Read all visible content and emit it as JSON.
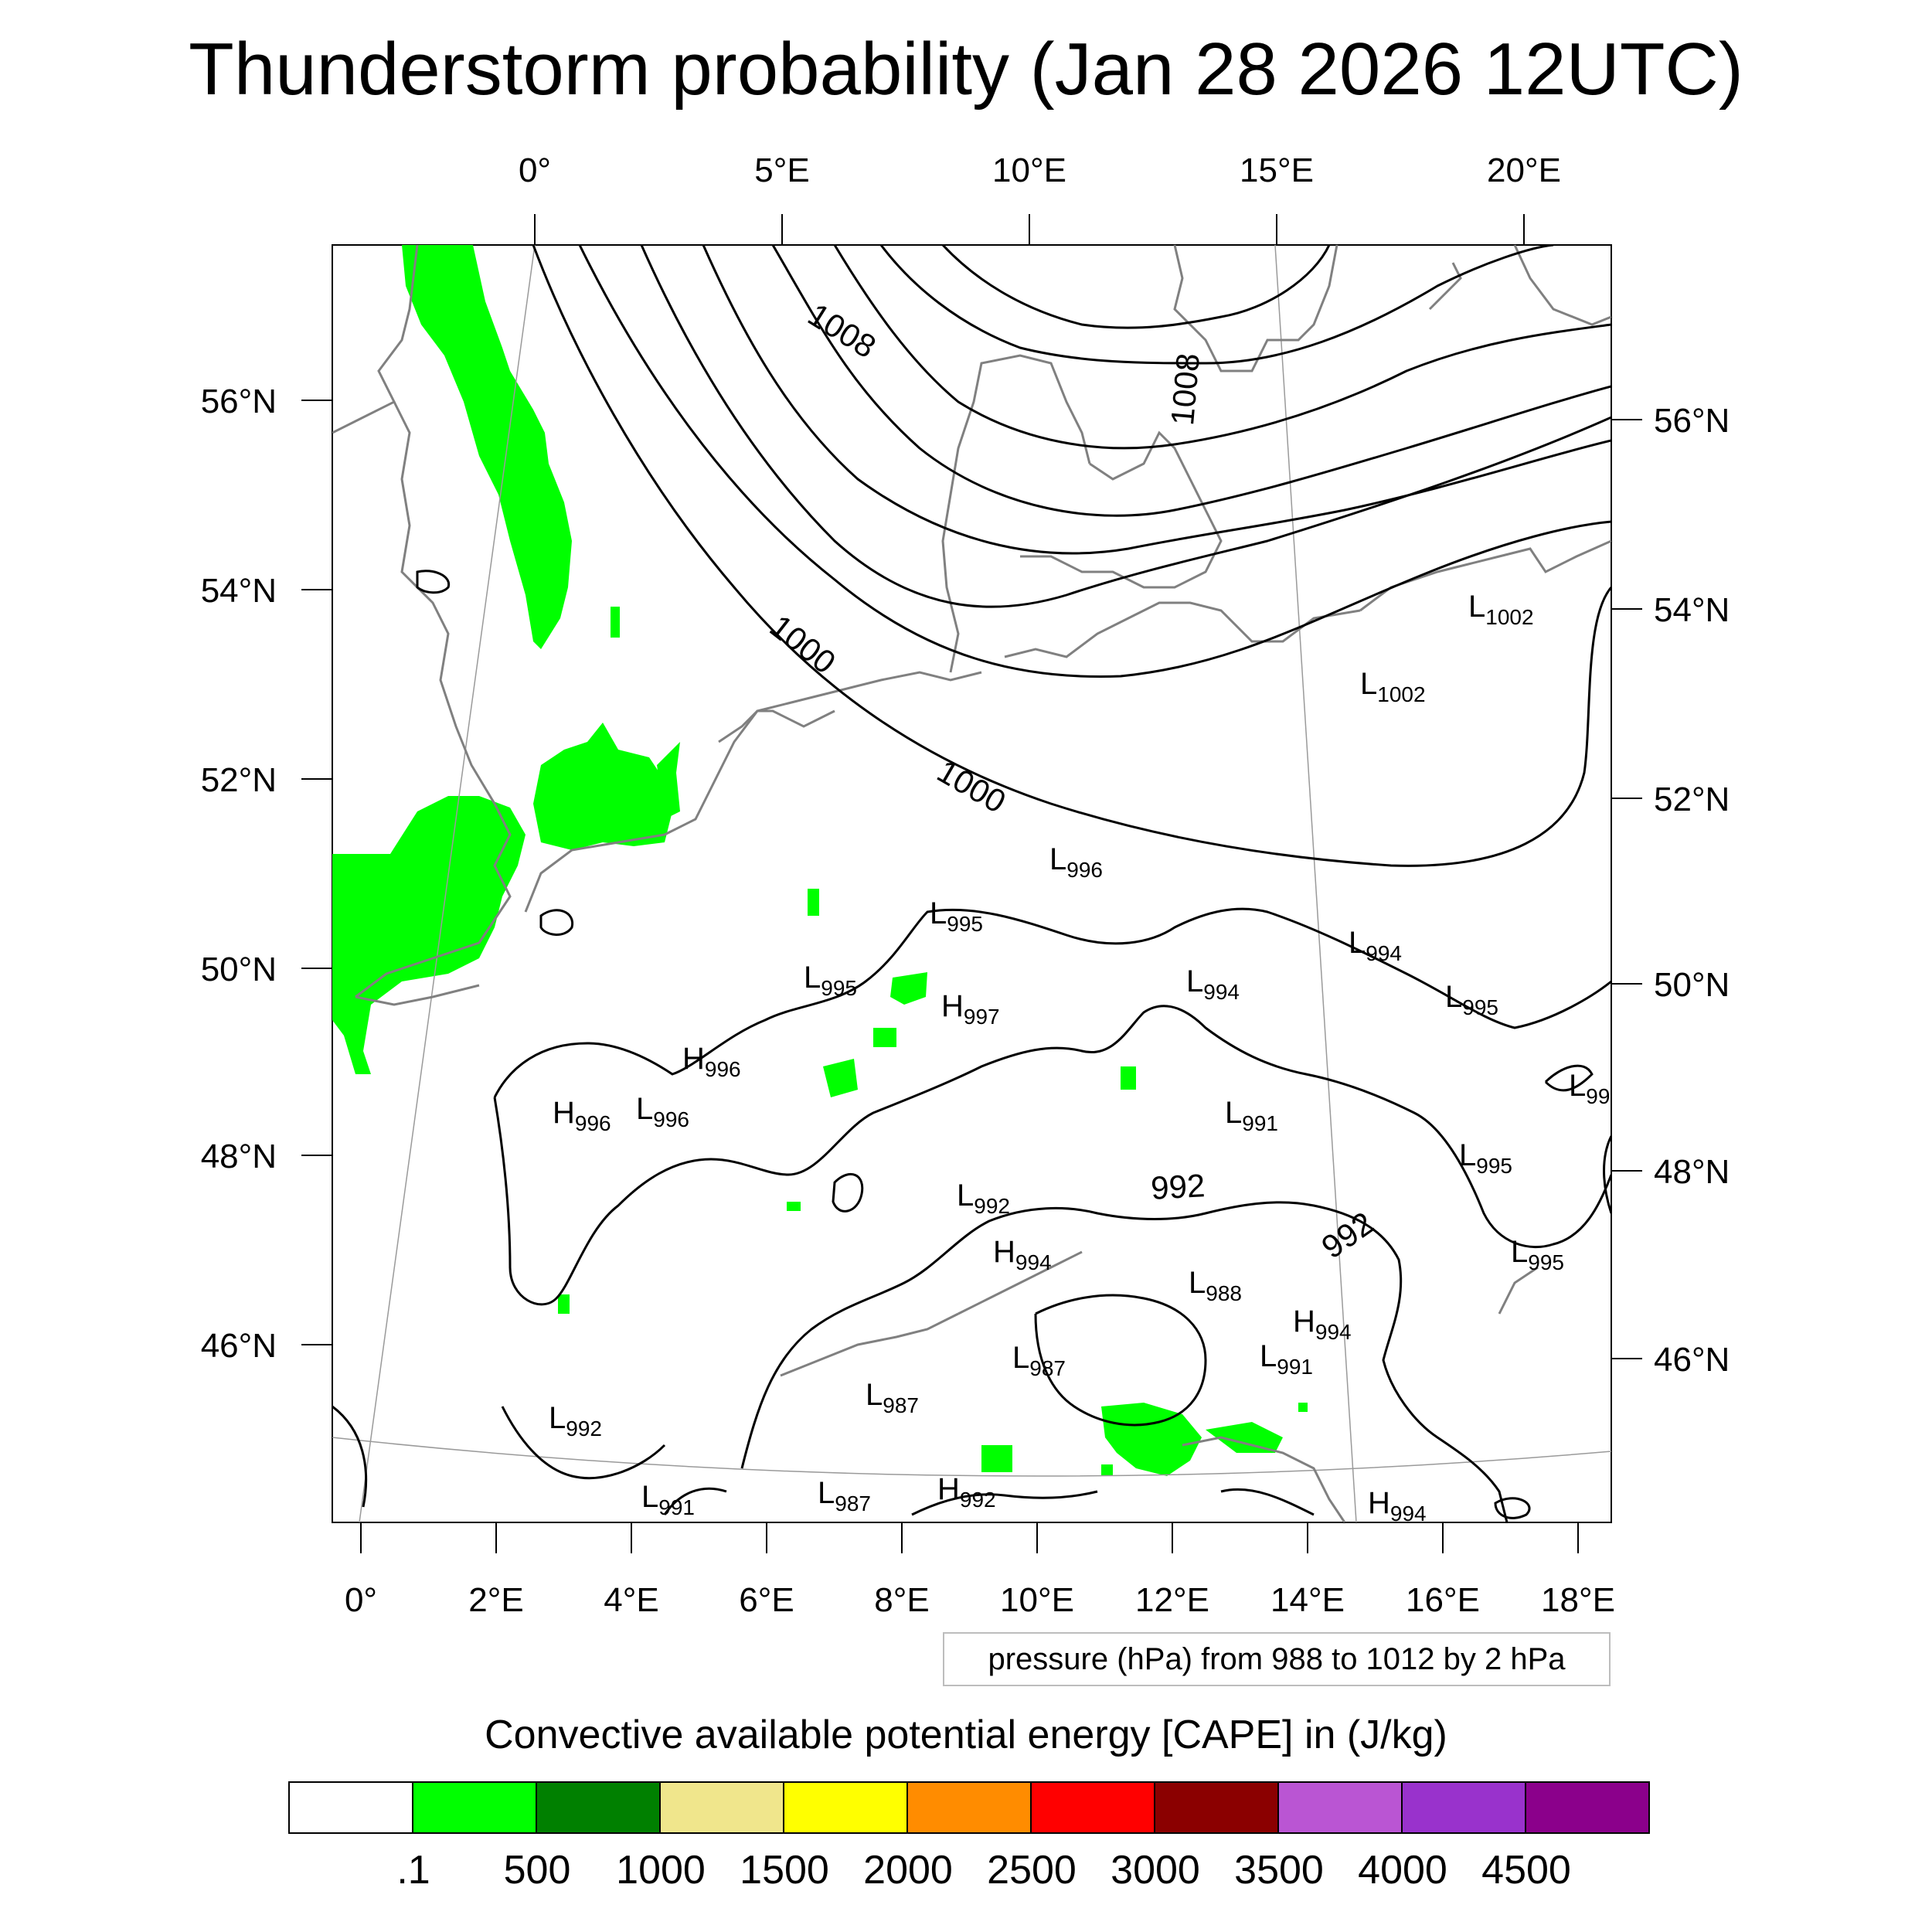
{
  "title": "Thunderstorm probability (Jan 28 2026 12UTC)",
  "map": {
    "top_lon_labels": [
      "0°",
      "5°E",
      "10°E",
      "15°E",
      "20°E"
    ],
    "bottom_lon_labels": [
      "0°",
      "2°E",
      "4°E",
      "6°E",
      "8°E",
      "10°E",
      "12°E",
      "14°E",
      "16°E",
      "18°E"
    ],
    "left_lat_labels": [
      "56°N",
      "54°N",
      "52°N",
      "50°N",
      "48°N",
      "46°N"
    ],
    "right_lat_labels": [
      "56°N",
      "54°N",
      "52°N",
      "50°N",
      "48°N",
      "46°N"
    ],
    "contour_labels": [
      "1008",
      "1008",
      "1000",
      "1000",
      "992",
      "992"
    ],
    "pressure_centers": [
      {
        "type": "L",
        "value": "1002"
      },
      {
        "type": "L",
        "value": "1002"
      },
      {
        "type": "L",
        "value": "996"
      },
      {
        "type": "L",
        "value": "995"
      },
      {
        "type": "L",
        "value": "994"
      },
      {
        "type": "L",
        "value": "995"
      },
      {
        "type": "H",
        "value": "997"
      },
      {
        "type": "L",
        "value": "994"
      },
      {
        "type": "L",
        "value": "995"
      },
      {
        "type": "H",
        "value": "996"
      },
      {
        "type": "H",
        "value": "996"
      },
      {
        "type": "L",
        "value": "996"
      },
      {
        "type": "L",
        "value": "991"
      },
      {
        "type": "L",
        "value": "99"
      },
      {
        "type": "L",
        "value": "995"
      },
      {
        "type": "L",
        "value": "992"
      },
      {
        "type": "H",
        "value": "994"
      },
      {
        "type": "L",
        "value": "988"
      },
      {
        "type": "L",
        "value": "995"
      },
      {
        "type": "H",
        "value": "994"
      },
      {
        "type": "L",
        "value": "987"
      },
      {
        "type": "L",
        "value": "991"
      },
      {
        "type": "L",
        "value": "987"
      },
      {
        "type": "L",
        "value": "992"
      },
      {
        "type": "L",
        "value": "991"
      },
      {
        "type": "L",
        "value": "987"
      },
      {
        "type": "H",
        "value": "992"
      },
      {
        "type": "H",
        "value": "994"
      }
    ],
    "contour_caption": "pressure (hPa) from 988 to 1012 by 2 hPa",
    "cape_color": "#00ff00",
    "contour_color": "#000000",
    "coastline_color": "#808080"
  },
  "colorbar": {
    "title": "Convective available potential energy [CAPE] in (J/kg)",
    "colors": [
      "#ffffff",
      "#00ff00",
      "#008000",
      "#f0e68c",
      "#ffff00",
      "#ff8c00",
      "#ff0000",
      "#8b0000",
      "#ba55d3",
      "#9932cc",
      "#8b008b"
    ],
    "labels": [
      ".1",
      "500",
      "1000",
      "1500",
      "2000",
      "2500",
      "3000",
      "3500",
      "4000",
      "4500"
    ]
  }
}
